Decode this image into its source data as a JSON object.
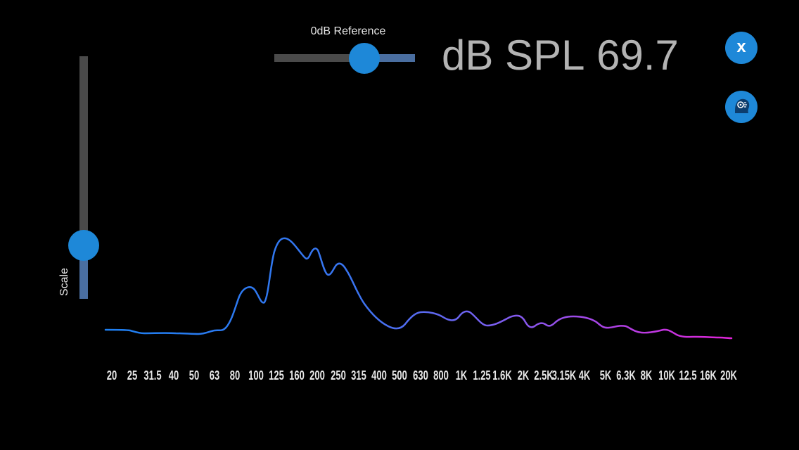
{
  "reference_slider": {
    "label": "0dB Reference",
    "value_fraction": 0.64
  },
  "spl": {
    "label": "dB SPL",
    "value": "69.7"
  },
  "close_button": {
    "label": "x",
    "icon": "close-icon"
  },
  "profile_button": {
    "icon": "head-profile-icon"
  },
  "scale_slider": {
    "label": "Scale",
    "value_fraction": 0.22
  },
  "spectrum": {
    "colors": {
      "start": "#1e7ff0",
      "middle": "#7a5ff0",
      "end": "#e024d8"
    },
    "frequency_labels": [
      "20",
      "25",
      "31.5",
      "40",
      "50",
      "63",
      "80",
      "100",
      "125",
      "160",
      "200",
      "250",
      "315",
      "400",
      "500",
      "630",
      "800",
      "1K",
      "1.25",
      "1.6K",
      "2K",
      "2.5K",
      "3.15K",
      "4K",
      "5K",
      "6.3K",
      "8K",
      "10K",
      "12.5",
      "16K",
      "20K"
    ]
  },
  "colors": {
    "accent": "#1e88d8",
    "background": "#000000",
    "track": "#4a4a4a",
    "track_fill": "#4a6ea0",
    "readout": "#b3b3b3"
  }
}
